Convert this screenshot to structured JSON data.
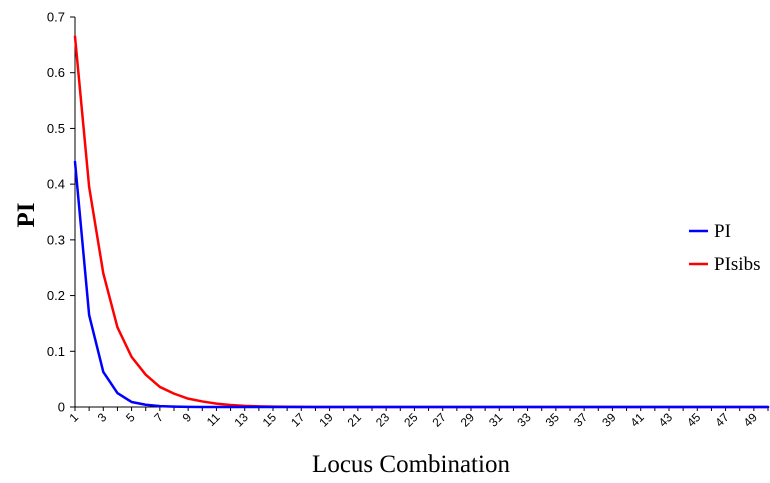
{
  "chart_data": {
    "type": "line",
    "title": "",
    "xlabel": "Locus Combination",
    "ylabel": "PI",
    "x": [
      1,
      2,
      3,
      4,
      5,
      6,
      7,
      8,
      9,
      10,
      11,
      12,
      13,
      14,
      15,
      16,
      17,
      18,
      19,
      20,
      21,
      22,
      23,
      24,
      25,
      26,
      27,
      28,
      29,
      30,
      31,
      32,
      33,
      34,
      35,
      36,
      37,
      38,
      39,
      40,
      41,
      42,
      43,
      44,
      45,
      46,
      47,
      48,
      49,
      50
    ],
    "x_tick_labels": [
      "1",
      "3",
      "5",
      "7",
      "9",
      "11",
      "13",
      "15",
      "17",
      "19",
      "21",
      "23",
      "25",
      "27",
      "29",
      "31",
      "33",
      "35",
      "37",
      "39",
      "41",
      "43",
      "45",
      "47",
      "49"
    ],
    "y_ticks": [
      0,
      0.1,
      0.2,
      0.3,
      0.4,
      0.5,
      0.6,
      0.7
    ],
    "y_tick_labels": [
      "0",
      "0.1",
      "0.2",
      "0.3",
      "0.4",
      "0.5",
      "0.6",
      "0.7"
    ],
    "ylim": [
      0,
      0.7
    ],
    "grid": false,
    "legend_position": "right",
    "series": [
      {
        "name": "PI",
        "color": "#0000ff",
        "values": [
          0.44,
          0.165,
          0.063,
          0.025,
          0.009,
          0.004,
          0.0015,
          0.0006,
          0.0002,
          0.0001,
          0,
          0,
          0,
          0,
          0,
          0,
          0,
          0,
          0,
          0,
          0,
          0,
          0,
          0,
          0,
          0,
          0,
          0,
          0,
          0,
          0,
          0,
          0,
          0,
          0,
          0,
          0,
          0,
          0,
          0,
          0,
          0,
          0,
          0,
          0,
          0,
          0,
          0,
          0,
          0
        ]
      },
      {
        "name": "PIsibs",
        "color": "#ff0000",
        "values": [
          0.665,
          0.395,
          0.24,
          0.143,
          0.09,
          0.058,
          0.036,
          0.024,
          0.015,
          0.01,
          0.006,
          0.0035,
          0.002,
          0.0012,
          0.0007,
          0.0004,
          0.0002,
          0.0001,
          0,
          0,
          0,
          0,
          0,
          0,
          0,
          0,
          0,
          0,
          0,
          0,
          0,
          0,
          0,
          0,
          0,
          0,
          0,
          0,
          0,
          0,
          0,
          0,
          0,
          0,
          0,
          0,
          0,
          0,
          0,
          0
        ]
      }
    ]
  }
}
